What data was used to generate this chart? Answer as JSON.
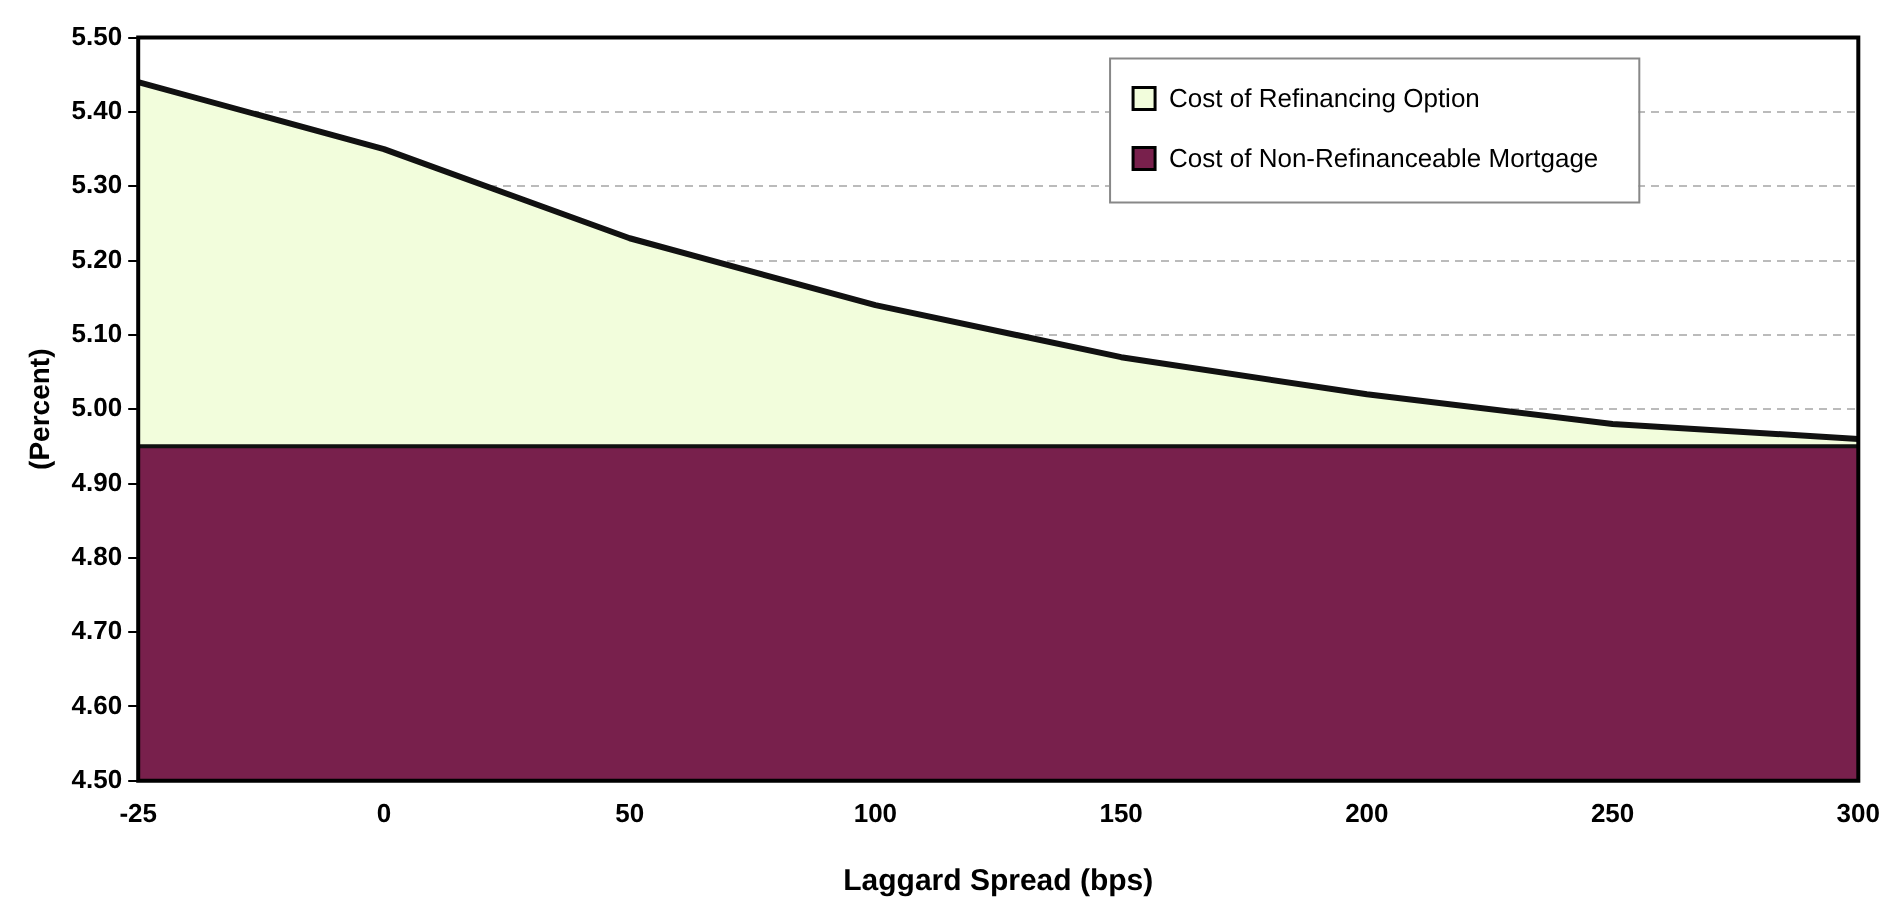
{
  "chart_data": {
    "type": "area",
    "xlabel": "Laggard Spread (bps)",
    "ylabel": "(Percent)",
    "categories": [
      "-25",
      "0",
      "50",
      "100",
      "150",
      "200",
      "250",
      "300"
    ],
    "series": [
      {
        "name": "Cost of Refinancing Option",
        "color": "#f2fddc",
        "values": [
          5.44,
          5.35,
          5.23,
          5.14,
          5.07,
          5.02,
          4.98,
          4.96
        ]
      },
      {
        "name": "Cost of Non-Refinanceable Mortgage",
        "color": "#78204c",
        "values": [
          4.95,
          4.95,
          4.95,
          4.95,
          4.95,
          4.95,
          4.95,
          4.95
        ]
      }
    ],
    "ylim": [
      4.5,
      5.5
    ],
    "yticks": [
      {
        "value": 4.5,
        "label": "4.50"
      },
      {
        "value": 4.6,
        "label": "4.60"
      },
      {
        "value": 4.7,
        "label": "4.70"
      },
      {
        "value": 4.8,
        "label": "4.80"
      },
      {
        "value": 4.9,
        "label": "4.90"
      },
      {
        "value": 5.0,
        "label": "5.00"
      },
      {
        "value": 5.1,
        "label": "5.10"
      },
      {
        "value": 5.2,
        "label": "5.20"
      },
      {
        "value": 5.3,
        "label": "5.30"
      },
      {
        "value": 5.4,
        "label": "5.40"
      },
      {
        "value": 5.5,
        "label": "5.50"
      }
    ],
    "grid": "y",
    "legend": "top right"
  }
}
